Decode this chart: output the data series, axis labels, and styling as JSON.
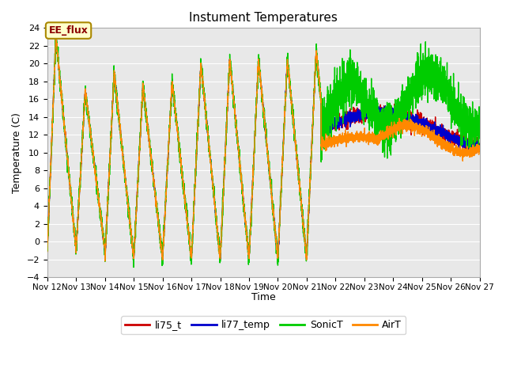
{
  "title": "Instument Temperatures",
  "ylabel": "Temperature (C)",
  "xlabel": "Time",
  "ylim": [
    -4,
    24
  ],
  "yticks": [
    -4,
    -2,
    0,
    2,
    4,
    6,
    8,
    10,
    12,
    14,
    16,
    18,
    20,
    22,
    24
  ],
  "xlim": [
    12,
    27
  ],
  "xtick_days": [
    12,
    13,
    14,
    15,
    16,
    17,
    18,
    19,
    20,
    21,
    22,
    23,
    24,
    25,
    26,
    27
  ],
  "xtick_labels": [
    "Nov 12",
    "Nov 13",
    "Nov 14",
    "Nov 15",
    "Nov 16",
    "Nov 17",
    "Nov 18",
    "Nov 19",
    "Nov 20",
    "Nov 21",
    "Nov 22",
    "Nov 23",
    "Nov 24",
    "Nov 25",
    "Nov 26",
    "Nov 27"
  ],
  "colors": {
    "li75_t": "#cc0000",
    "li77_temp": "#0000cc",
    "SonicT": "#00cc00",
    "AirT": "#ff8800"
  },
  "plot_bg": "#e8e8e8",
  "fig_bg": "#ffffff",
  "annotation_text": "EE_flux",
  "annotation_bg": "#ffffcc",
  "annotation_border": "#aa8800",
  "linewidth": 1.0,
  "title_fontsize": 11,
  "axis_fontsize": 9,
  "tick_fontsize": 8
}
